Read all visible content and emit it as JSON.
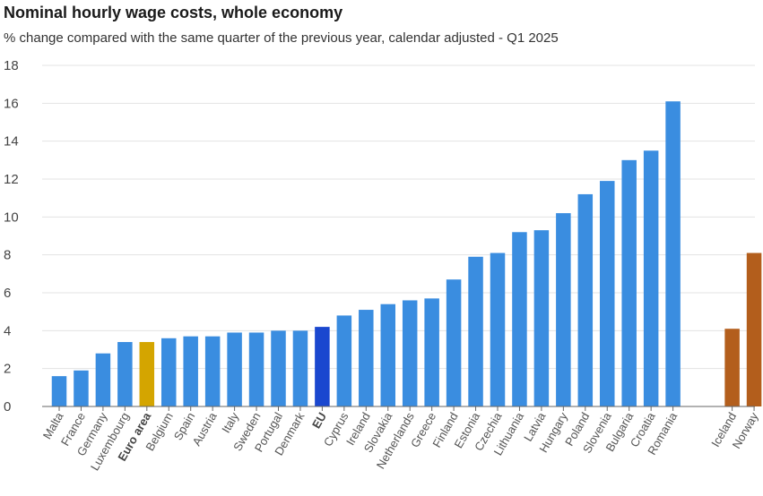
{
  "title": "Nominal hourly wage costs, whole economy",
  "subtitle": "% change compared with the same quarter of the previous year, calendar adjusted - Q1 2025",
  "colors": {
    "country": "#3a8de0",
    "euro_area": "#d4a500",
    "eu": "#1a47cf",
    "non_eu": "#b35e1c",
    "grid": "#e3e3e3",
    "axis": "#666666"
  },
  "chart_data": {
    "type": "bar",
    "title": "Nominal hourly wage costs, whole economy",
    "subtitle": "% change compared with the same quarter of the previous year, calendar adjusted - Q1 2025",
    "xlabel": "",
    "ylabel": "",
    "ylim": [
      0,
      18
    ],
    "yticks": [
      0,
      2,
      4,
      6,
      8,
      10,
      12,
      14,
      16,
      18
    ],
    "grid": true,
    "categories": [
      "Malta",
      "France",
      "Germany",
      "Luxembourg",
      "Euro area",
      "Belgium",
      "Spain",
      "Austria",
      "Italy",
      "Sweden",
      "Portugal",
      "Denmark",
      "EU",
      "Cyprus",
      "Ireland",
      "Slovakia",
      "Netherlands",
      "Greece",
      "Finland",
      "Estonia",
      "Czechia",
      "Lithuania",
      "Latvia",
      "Hungary",
      "Poland",
      "Slovenia",
      "Bulgaria",
      "Croatia",
      "Romania",
      "Iceland",
      "Norway"
    ],
    "values": [
      1.6,
      1.9,
      2.8,
      3.4,
      3.4,
      3.6,
      3.7,
      3.7,
      3.9,
      3.9,
      4.0,
      4.0,
      4.2,
      4.8,
      5.1,
      5.4,
      5.6,
      5.7,
      6.7,
      7.9,
      8.1,
      9.2,
      9.3,
      10.2,
      11.2,
      11.9,
      13.0,
      13.5,
      16.1,
      4.1,
      8.1
    ],
    "groups": [
      "country",
      "country",
      "country",
      "country",
      "euro_area",
      "country",
      "country",
      "country",
      "country",
      "country",
      "country",
      "country",
      "eu",
      "country",
      "country",
      "country",
      "country",
      "country",
      "country",
      "country",
      "country",
      "country",
      "country",
      "country",
      "country",
      "country",
      "country",
      "country",
      "country",
      "non_eu",
      "non_eu"
    ]
  }
}
